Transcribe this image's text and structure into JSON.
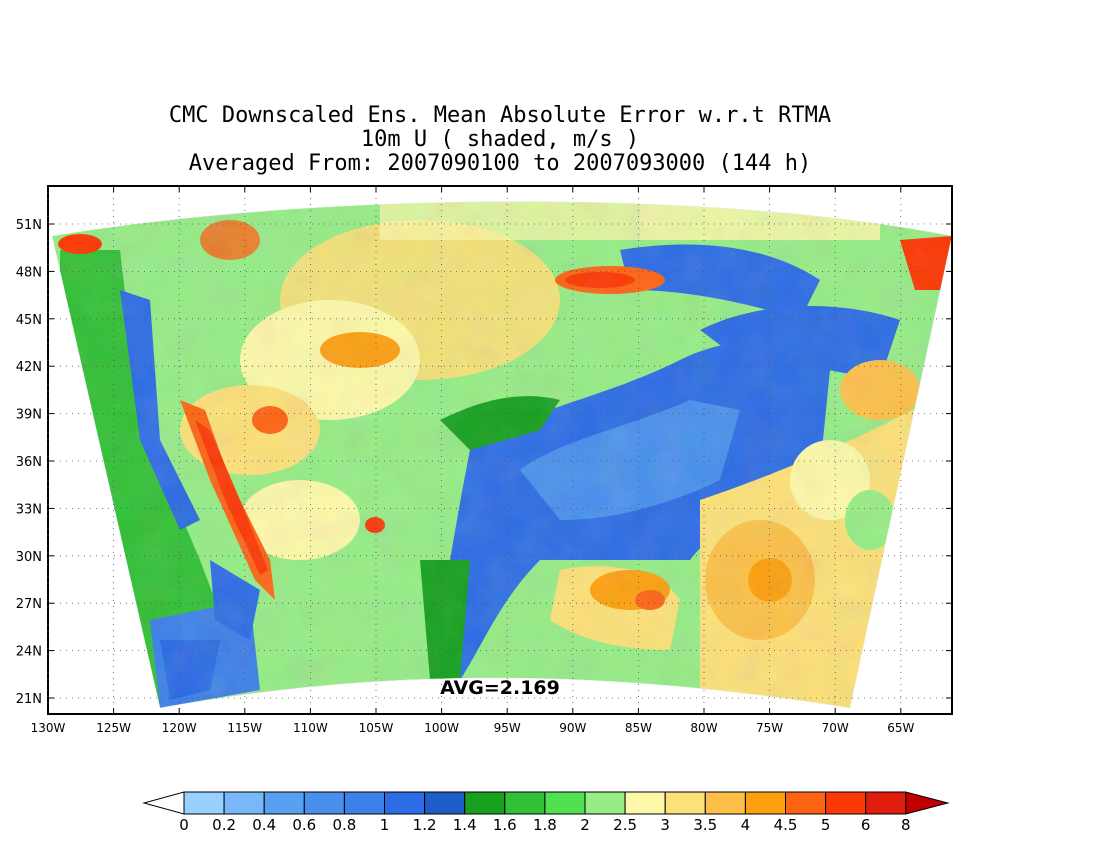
{
  "title": {
    "line1": "CMC Downscaled Ens. Mean Absolute Error w.r.t RTMA",
    "line2": "10m U ( shaded, m/s )",
    "line3": "Averaged From: 2007090100 to 2007093000 (144 h)"
  },
  "avg_label": "AVG=2.169",
  "map": {
    "projection": "lambert-conformal",
    "lat_ticks": [
      "51N",
      "48N",
      "45N",
      "42N",
      "39N",
      "36N",
      "33N",
      "30N",
      "27N",
      "24N",
      "21N"
    ],
    "lon_ticks": [
      "130W",
      "125W",
      "120W",
      "115W",
      "110W",
      "105W",
      "100W",
      "95W",
      "90W",
      "85W",
      "80W",
      "75W",
      "70W",
      "65W"
    ],
    "grid": true
  },
  "colorbar": {
    "labels": [
      "0",
      "0.2",
      "0.4",
      "0.6",
      "0.8",
      "1",
      "1.2",
      "1.4",
      "1.6",
      "1.8",
      "2",
      "2.5",
      "3",
      "3.5",
      "4",
      "4.5",
      "5",
      "6",
      "8"
    ],
    "colors": [
      "#98d0ff",
      "#78b8f8",
      "#58a0f0",
      "#4890ec",
      "#3c80e8",
      "#2c6ce4",
      "#1e5cc8",
      "#16a01e",
      "#32c036",
      "#50e050",
      "#96ec86",
      "#fcf8a8",
      "#fce078",
      "#fcc048",
      "#fca010",
      "#fc6414",
      "#fc3804",
      "#e01c0c",
      "#c00000"
    ],
    "under_color": "#ffffff",
    "over_color": "#c00000"
  }
}
